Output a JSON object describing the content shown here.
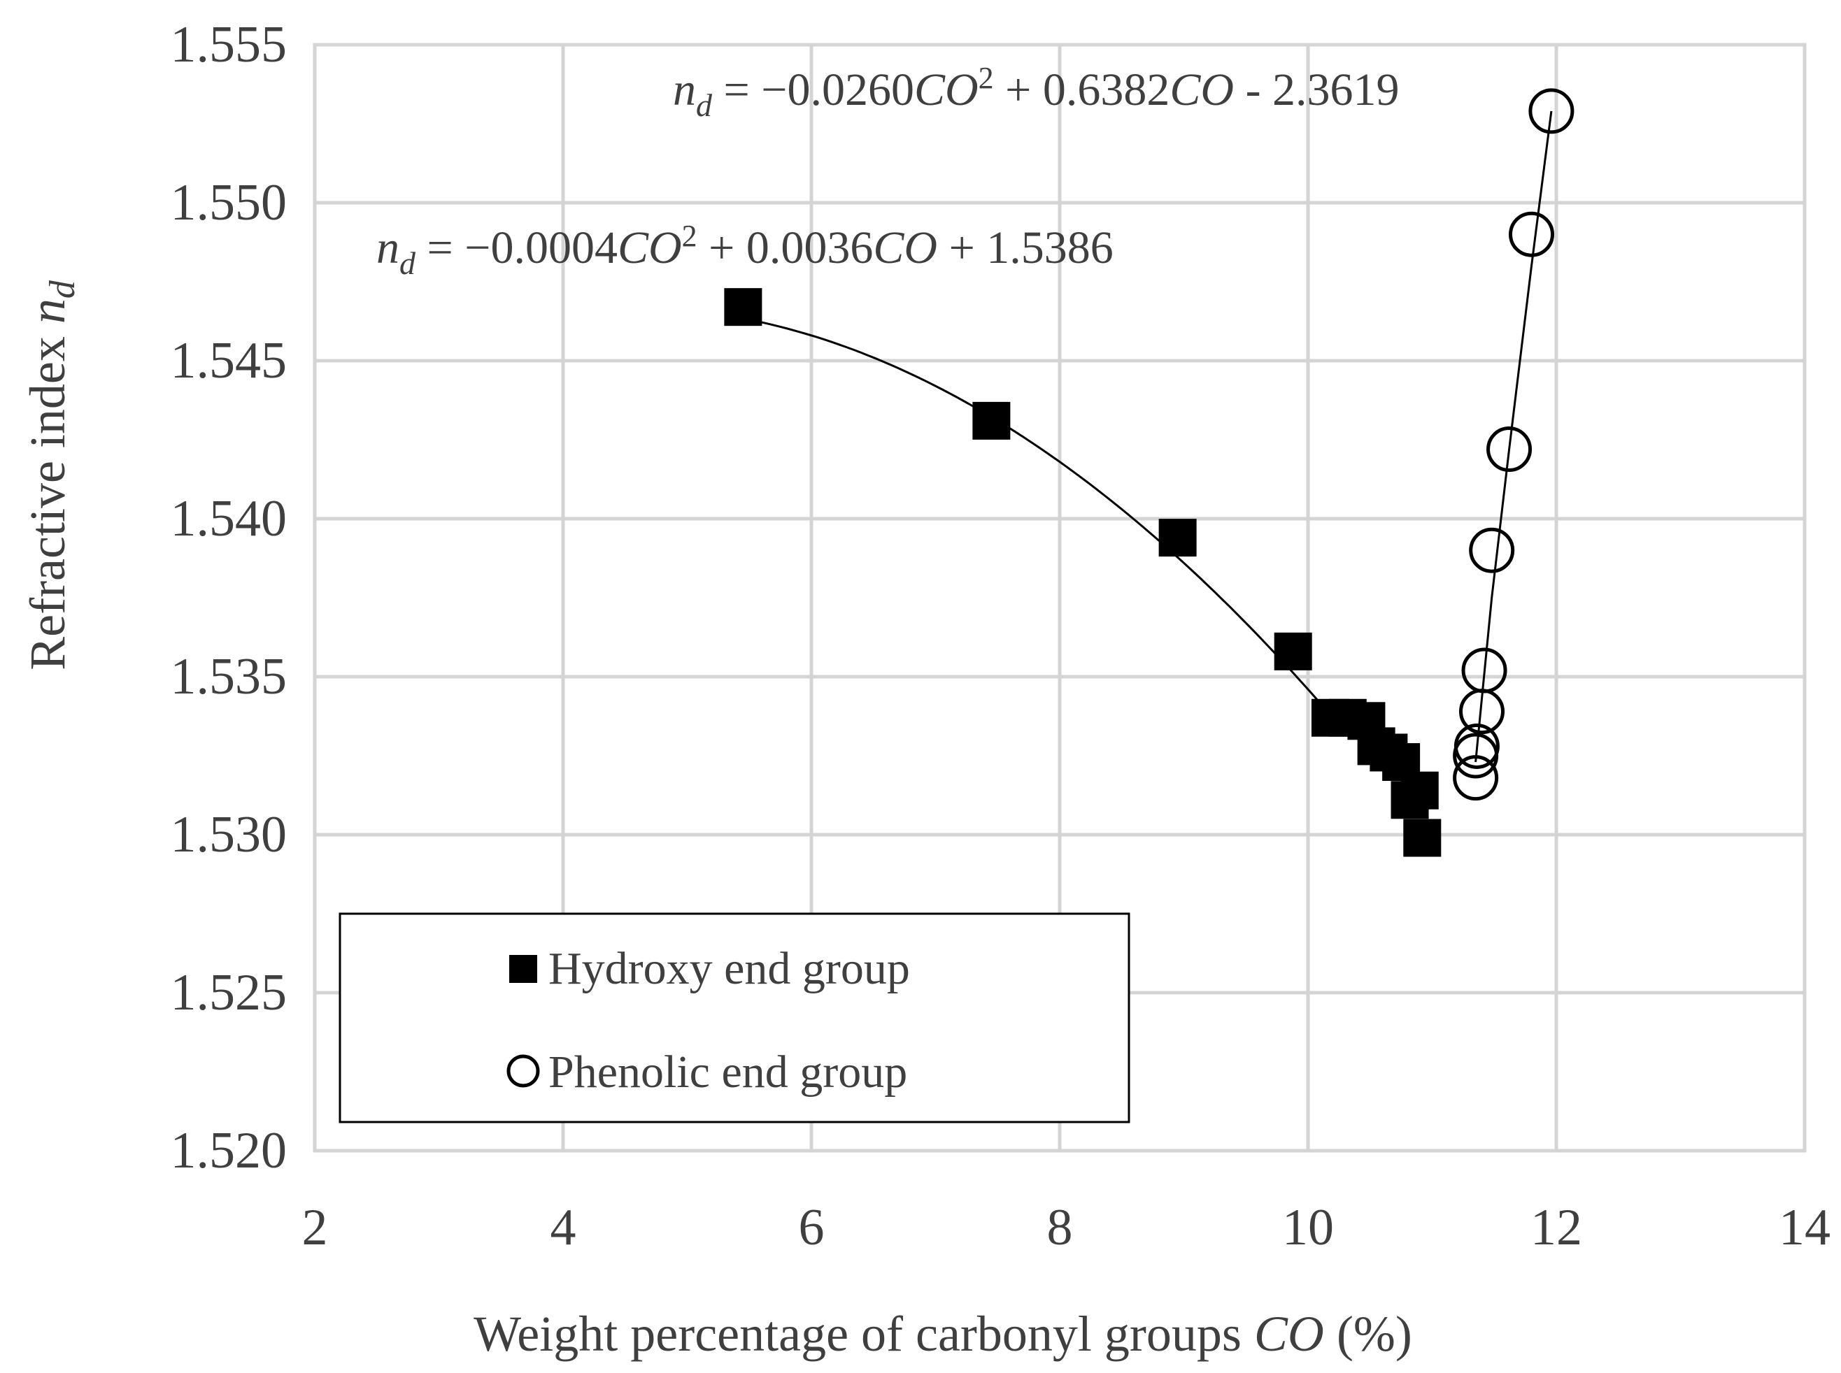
{
  "chart_data": {
    "type": "scatter",
    "xlabel_main": "Weight percentage of carbonyl groups ",
    "xlabel_var": "CO",
    "xlabel_unit": " (%)",
    "ylabel_main": "Refractive index ",
    "ylabel_var": "n",
    "ylabel_sub": "d",
    "xlim": [
      2,
      14
    ],
    "ylim": [
      1.52,
      1.555
    ],
    "x_ticks": [
      2,
      4,
      6,
      8,
      10,
      12,
      14
    ],
    "x_tick_labels": [
      "2",
      "4",
      "6",
      "8",
      "10",
      "12",
      "14"
    ],
    "y_ticks": [
      1.52,
      1.525,
      1.53,
      1.535,
      1.54,
      1.545,
      1.55,
      1.555
    ],
    "y_tick_labels": [
      "1.520",
      "1.525",
      "1.530",
      "1.535",
      "1.540",
      "1.545",
      "1.550",
      "1.555"
    ],
    "grid": true,
    "legend_position": "bottom-left",
    "series": [
      {
        "name": "Hydroxy end group",
        "marker": "filled-square",
        "color": "#000000",
        "points": [
          {
            "x": 5.45,
            "y": 1.5467
          },
          {
            "x": 7.45,
            "y": 1.5431
          },
          {
            "x": 8.95,
            "y": 1.5394
          },
          {
            "x": 9.88,
            "y": 1.5358
          },
          {
            "x": 10.18,
            "y": 1.5337
          },
          {
            "x": 10.32,
            "y": 1.5337
          },
          {
            "x": 10.47,
            "y": 1.5336
          },
          {
            "x": 10.55,
            "y": 1.5328
          },
          {
            "x": 10.65,
            "y": 1.5326
          },
          {
            "x": 10.75,
            "y": 1.5323
          },
          {
            "x": 10.82,
            "y": 1.5311
          },
          {
            "x": 10.9,
            "y": 1.5314
          },
          {
            "x": 10.92,
            "y": 1.5299
          }
        ],
        "fit": {
          "a": -0.0004,
          "b": 0.0036,
          "c": 1.5386,
          "x_from": 5.45,
          "x_to": 10.2
        },
        "equation": {
          "lhs_var": "n",
          "lhs_sub": "d",
          "rhs_a": " = −0.0004",
          "rhs_var1": "CO",
          "rhs_sup": "2",
          "rhs_b": " + 0.0036",
          "rhs_var2": "CO",
          "rhs_c": " + 1.5386"
        }
      },
      {
        "name": "Phenolic end group",
        "marker": "open-circle",
        "color": "#000000",
        "points": [
          {
            "x": 11.35,
            "y": 1.5318
          },
          {
            "x": 11.35,
            "y": 1.5325
          },
          {
            "x": 11.36,
            "y": 1.5328
          },
          {
            "x": 11.4,
            "y": 1.5339
          },
          {
            "x": 11.42,
            "y": 1.5352
          },
          {
            "x": 11.48,
            "y": 1.539
          },
          {
            "x": 11.62,
            "y": 1.5422
          },
          {
            "x": 11.8,
            "y": 1.549
          },
          {
            "x": 11.96,
            "y": 1.5529
          }
        ],
        "fit_line": [
          [
            11.35,
            1.5323
          ],
          [
            11.48,
            1.5375
          ],
          [
            11.62,
            1.5422
          ],
          [
            11.8,
            1.548
          ],
          [
            11.96,
            1.5529
          ]
        ],
        "equation": {
          "lhs_var": "n",
          "lhs_sub": "d",
          "rhs_a": " = −0.0260",
          "rhs_var1": "CO",
          "rhs_sup": "2",
          "rhs_b": " + 0.6382",
          "rhs_var2": "CO",
          "rhs_c": " - 2.3619"
        }
      }
    ]
  }
}
